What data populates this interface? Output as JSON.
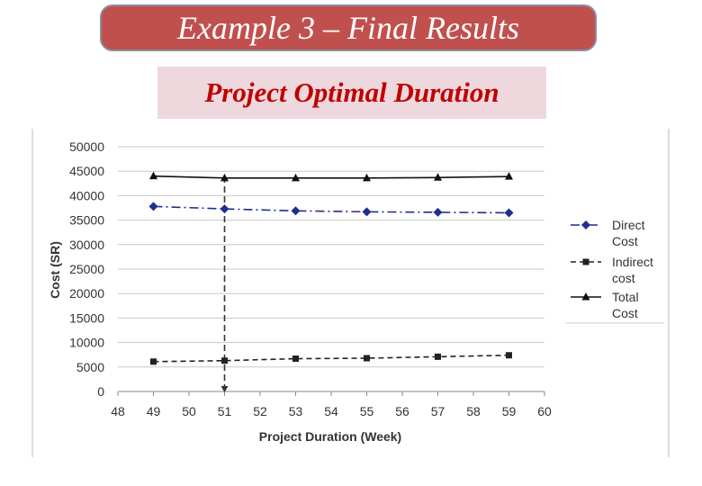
{
  "slide": {
    "title": "Example 3 – Final Results",
    "subtitle": "Project Optimal Duration"
  },
  "chart_data": {
    "type": "line",
    "xlabel": "Project Duration (Week)",
    "ylabel": "Cost (SR)",
    "xlim": [
      48,
      60
    ],
    "ylim": [
      0,
      50000
    ],
    "xticks": [
      48,
      49,
      50,
      51,
      52,
      53,
      54,
      55,
      56,
      57,
      58,
      59,
      60
    ],
    "yticks": [
      0,
      5000,
      10000,
      15000,
      20000,
      25000,
      30000,
      35000,
      40000,
      45000,
      50000
    ],
    "grid": "horizontal",
    "legend_position": "right",
    "x": [
      49,
      51,
      53,
      55,
      57,
      59
    ],
    "series": [
      {
        "name": "Direct Cost",
        "values": [
          37800,
          37300,
          36900,
          36700,
          36600,
          36500
        ],
        "color": "#1f2f8f",
        "marker": "diamond",
        "dash": "dash-dot"
      },
      {
        "name": "Indirect cost",
        "values": [
          6100,
          6300,
          6700,
          6800,
          7100,
          7400
        ],
        "color": "#222222",
        "marker": "square",
        "dash": "dash"
      },
      {
        "name": "Total Cost",
        "values": [
          44000,
          43600,
          43600,
          43600,
          43700,
          43900
        ],
        "color": "#111111",
        "marker": "triangle",
        "dash": "solid"
      }
    ],
    "annotation": {
      "type": "vertical-dashed-arrow",
      "x": 51
    }
  }
}
